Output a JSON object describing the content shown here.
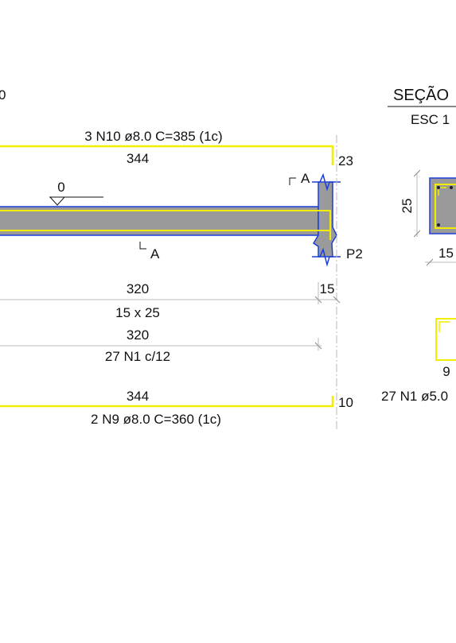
{
  "labels": {
    "fragment_left_top": "0",
    "section_title": "SEÇÃO",
    "section_scale": "ESC 1",
    "top_bar_callout": "3 N10 ø8.0  C=385 (1c)",
    "top_bar_length": "344",
    "top_bar_hook": "23",
    "section_mark_top": "A",
    "section_mark_bottom": "A",
    "level_mark": "0",
    "support_name": "P2",
    "span_length": "320",
    "support_width": "15",
    "beam_section": "15 x 25",
    "stirrup_span": "320",
    "stirrup_callout": "27 N1 c/12",
    "bottom_bar_length": "344",
    "bottom_bar_hook": "10",
    "bottom_bar_callout": "2 N9 ø8.0  C=360  (1c)",
    "section_height": "25",
    "section_width": "15",
    "stirrup_width": "9",
    "stirrup_callout_detail": "27 N1 ø5.0"
  },
  "colors": {
    "rebar": "#f2ee00",
    "concrete": "#9a9a9a",
    "outline": "#1a3fd6",
    "dimension": "#b8b8b8",
    "text": "#111111"
  }
}
